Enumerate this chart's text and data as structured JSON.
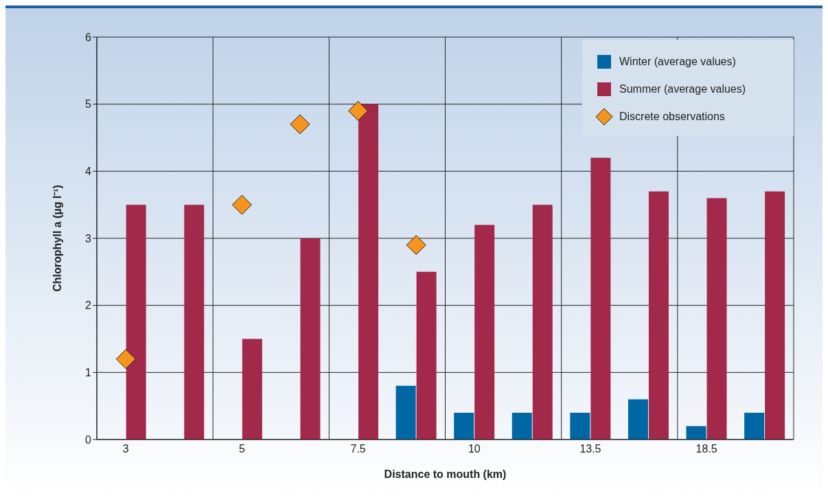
{
  "chart_data": {
    "type": "bar",
    "xlabel": "Distance to mouth (km)",
    "ylabel": "Chlorophyll a (µg l⁻¹)",
    "categories": [
      "3",
      null,
      "5",
      null,
      "7.5",
      null,
      "10",
      null,
      "13.5",
      null,
      "18.5",
      null
    ],
    "series": [
      {
        "name": "Winter (average values)",
        "color": "#0066a4",
        "values": [
          null,
          null,
          null,
          null,
          null,
          0.8,
          0.4,
          0.4,
          0.4,
          0.6,
          0.2,
          0.4
        ]
      },
      {
        "name": "Summer (average values)",
        "color": "#a3294b",
        "values": [
          3.5,
          3.5,
          1.5,
          3.0,
          5.0,
          2.5,
          3.2,
          3.5,
          4.2,
          3.7,
          3.6,
          3.7
        ]
      },
      {
        "name": "Discrete observations",
        "type": "scatter",
        "color": "#f7941d",
        "values": [
          1.2,
          null,
          3.5,
          4.7,
          4.9,
          2.9,
          null,
          null,
          null,
          null,
          null,
          null
        ]
      }
    ],
    "ylim": [
      0,
      6
    ],
    "yticks": [
      0,
      1,
      2,
      3,
      4,
      5,
      6
    ],
    "grid": true,
    "legend": "top right",
    "marker": "diamond"
  }
}
